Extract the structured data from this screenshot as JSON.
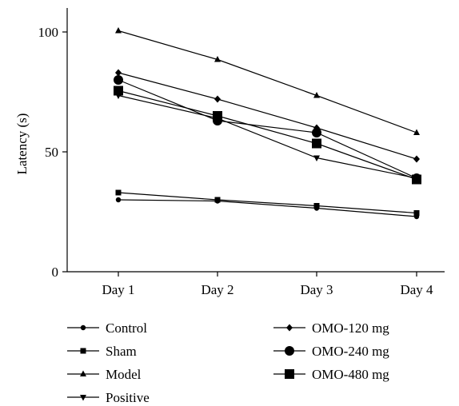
{
  "chart_data": {
    "type": "line",
    "categories": [
      "Day 1",
      "Day 2",
      "Day 3",
      "Day 4"
    ],
    "ylabel": "Latency (s)",
    "xlabel": "",
    "ylim": [
      0,
      110
    ],
    "yticks": [
      0,
      50,
      100
    ],
    "grid": false,
    "legend_position": "bottom",
    "series": [
      {
        "name": "Control",
        "marker": "circle-small",
        "values": [
          30,
          29.5,
          26.5,
          23
        ]
      },
      {
        "name": "Sham",
        "marker": "square-small",
        "values": [
          33,
          30,
          27.5,
          24.5
        ]
      },
      {
        "name": "Model",
        "marker": "triangle-up",
        "values": [
          100.5,
          88.5,
          73.5,
          58
        ]
      },
      {
        "name": "Positive",
        "marker": "triangle-down",
        "values": [
          73.5,
          64,
          47.5,
          39
        ]
      },
      {
        "name": "OMO-120 mg",
        "marker": "diamond",
        "values": [
          83,
          72,
          60,
          47
        ]
      },
      {
        "name": "OMO-240 mg",
        "marker": "circle-large",
        "values": [
          80,
          63,
          58,
          39
        ]
      },
      {
        "name": "OMO-480 mg",
        "marker": "square-large",
        "values": [
          75.5,
          65,
          53.5,
          38.5
        ]
      }
    ]
  },
  "colors": {
    "ink": "#000000"
  }
}
